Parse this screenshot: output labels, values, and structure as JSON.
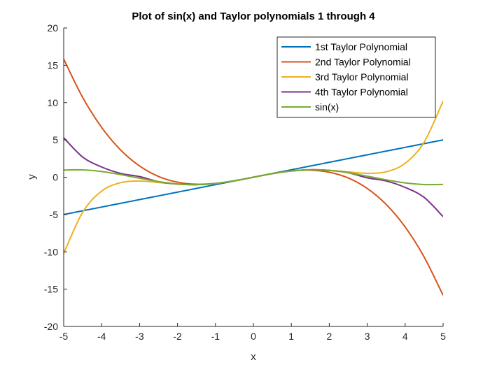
{
  "chart_data": {
    "type": "line",
    "title": "Plot of sin(x) and Taylor polynomials 1 through 4",
    "xlabel": "x",
    "ylabel": "y",
    "xlim": [
      -5,
      5
    ],
    "ylim": [
      -20,
      20
    ],
    "xticks": [
      -5,
      -4,
      -3,
      -2,
      -1,
      0,
      1,
      2,
      3,
      4,
      5
    ],
    "yticks": [
      -20,
      -15,
      -10,
      -5,
      0,
      5,
      10,
      15,
      20
    ],
    "grid": false,
    "legend_position": "top-right",
    "x": [
      -5,
      -4.5,
      -4,
      -3.5,
      -3,
      -2.5,
      -2,
      -1.5,
      -1,
      -0.5,
      0,
      0.5,
      1,
      1.5,
      2,
      2.5,
      3,
      3.5,
      4,
      4.5,
      5
    ],
    "series": [
      {
        "name": "1st Taylor Polynomial",
        "color": "#0072BD",
        "values": [
          -5,
          -4.5,
          -4,
          -3.5,
          -3,
          -2.5,
          -2,
          -1.5,
          -1,
          -0.5,
          0,
          0.5,
          1,
          1.5,
          2,
          2.5,
          3,
          3.5,
          4,
          4.5,
          5
        ]
      },
      {
        "name": "2nd Taylor Polynomial",
        "color": "#D95319",
        "values": [
          15.83,
          10.69,
          6.67,
          3.65,
          1.5,
          0.1,
          -0.67,
          -0.94,
          -0.83,
          -0.48,
          0,
          0.48,
          0.83,
          0.94,
          0.67,
          -0.1,
          -1.5,
          -3.65,
          -6.67,
          -10.69,
          -15.83
        ]
      },
      {
        "name": "3rd Taylor Polynomial",
        "color": "#EDB120",
        "values": [
          -10.21,
          -4.69,
          -1.86,
          -0.73,
          -0.52,
          -0.71,
          -0.93,
          -1.0,
          -0.84,
          -0.48,
          0,
          0.48,
          0.84,
          1.0,
          0.93,
          0.71,
          0.52,
          0.73,
          1.86,
          4.69,
          10.21
        ]
      },
      {
        "name": "4th Taylor Polynomial",
        "color": "#7E2F8E",
        "values": [
          5.29,
          2.7,
          1.37,
          0.51,
          0.08,
          -0.6,
          -0.91,
          -1.0,
          -0.84,
          -0.48,
          0,
          0.48,
          0.84,
          1.0,
          0.91,
          0.6,
          -0.08,
          -0.51,
          -1.37,
          -2.7,
          -5.29
        ]
      },
      {
        "name": "sin(x)",
        "color": "#77AC30",
        "values": [
          0.96,
          0.98,
          0.76,
          0.35,
          -0.14,
          -0.6,
          -0.91,
          -1.0,
          -0.84,
          -0.48,
          0,
          0.48,
          0.84,
          1.0,
          0.91,
          0.6,
          0.14,
          -0.35,
          -0.76,
          -0.98,
          -0.96
        ]
      }
    ]
  }
}
